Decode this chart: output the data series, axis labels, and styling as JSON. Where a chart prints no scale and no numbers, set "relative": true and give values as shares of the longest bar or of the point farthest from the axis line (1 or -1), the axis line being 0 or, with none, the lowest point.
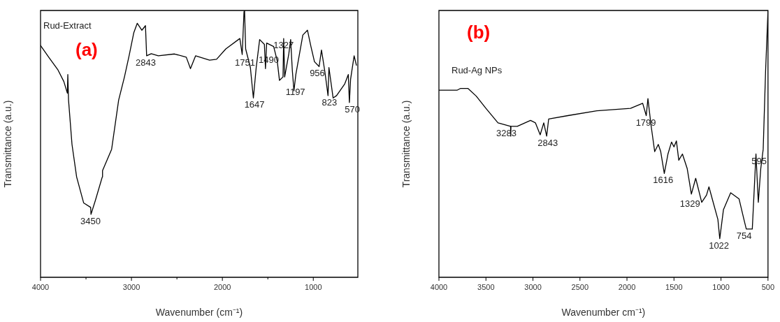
{
  "chart_data": [
    {
      "type": "line",
      "title": "(a)",
      "xlabel": "Wavenumber (cm⁻¹)",
      "ylabel": "Transmittance (a.u.)",
      "relative": true,
      "tick_labels": "x",
      "grid": false,
      "legend": false,
      "marker": "none",
      "line_style": "solid",
      "xlim": [
        4000,
        510
      ],
      "xticks": [
        4000,
        {
          "value": 3500,
          "label": null
        },
        3000,
        {
          "value": 2500,
          "label": null
        },
        2000,
        {
          "value": 1500,
          "label": null
        },
        1000
      ],
      "series": [
        {
          "color": "#000000",
          "x": [
            4000,
            3910,
            3808,
            3744,
            3705,
            3700,
            3692,
            3654,
            3603,
            3526,
            3449,
            3445,
            3397,
            3321,
            3318,
            3218,
            3141,
            3077,
            3026,
            2974,
            2936,
            2885,
            2846,
            2833,
            2782,
            2705,
            2526,
            2397,
            2351,
            2295,
            2141,
            2064,
            1962,
            1808,
            1782,
            1762,
            1756,
            1744,
            1692,
            1667,
            1659,
            1628,
            1590,
            1538,
            1526,
            1513,
            1436,
            1397,
            1372,
            1333,
            1326,
            1315,
            1269,
            1249,
            1231,
            1213,
            1192,
            1115,
            1064,
            1026,
            987,
            936,
            910,
            872,
            838,
            828,
            782,
            744,
            654,
            615,
            603,
            590,
            551,
            526
          ],
          "values": [
            0.869,
            0.825,
            0.777,
            0.734,
            0.69,
            0.76,
            0.664,
            0.498,
            0.376,
            0.279,
            0.262,
            0.236,
            0.288,
            0.376,
            0.4,
            0.48,
            0.664,
            0.751,
            0.83,
            0.917,
            0.952,
            0.926,
            0.943,
            0.83,
            0.838,
            0.83,
            0.837,
            0.825,
            0.782,
            0.83,
            0.814,
            0.817,
            0.856,
            0.895,
            0.835,
            0.996,
            1,
            0.856,
            0.786,
            0.699,
            0.672,
            0.786,
            0.891,
            0.873,
            0.782,
            0.878,
            0.865,
            0.812,
            0.738,
            0.751,
            0.895,
            0.751,
            0.838,
            0.891,
            0.777,
            0.699,
            0.76,
            0.908,
            0.926,
            0.865,
            0.808,
            0.79,
            0.852,
            0.769,
            0.681,
            0.786,
            0.672,
            0.681,
            0.725,
            0.76,
            0.655,
            0.742,
            0.83,
            0.795
          ]
        }
      ],
      "annotations": [
        "Rud-Extract",
        {
          "text": "3450",
          "x": 3450,
          "y": 0.236
        },
        {
          "text": "2843",
          "x": 2843,
          "y": 0.83
        },
        {
          "text": "1751",
          "x": 1751,
          "y": 0.83
        },
        {
          "text": "1647",
          "x": 1647,
          "y": 0.672
        },
        {
          "text": "1490",
          "x": 1490,
          "y": 0.84
        },
        {
          "text": "1327",
          "x": 1327,
          "y": 0.895
        },
        {
          "text": "1197",
          "x": 1197,
          "y": 0.72
        },
        {
          "text": "956",
          "x": 956,
          "y": 0.79
        },
        {
          "text": "823",
          "x": 823,
          "y": 0.681
        },
        {
          "text": "570",
          "x": 570,
          "y": 0.655
        }
      ]
    },
    {
      "type": "line",
      "title": "(b)",
      "xlabel": "Wavenumber cm⁻¹)",
      "ylabel": "Transmittance (a.u.)",
      "relative": true,
      "tick_labels": "x",
      "grid": false,
      "legend": false,
      "marker": "none",
      "line_style": "solid",
      "xlim": [
        4000,
        500
      ],
      "xticks": [
        4000,
        3500,
        3000,
        2500,
        2000,
        1500,
        1000,
        500
      ],
      "series": [
        {
          "color": "#000000",
          "x": [
            4000,
            3808,
            3769,
            3692,
            3603,
            3500,
            3372,
            3238,
            3236,
            3234,
            3167,
            3026,
            2974,
            2923,
            2885,
            2854,
            2833,
            2628,
            2321,
            1962,
            1833,
            1795,
            1777,
            1744,
            1705,
            1667,
            1641,
            1603,
            1564,
            1526,
            1500,
            1474,
            1449,
            1410,
            1359,
            1315,
            1269,
            1205,
            1154,
            1128,
            1090,
            1033,
            1013,
            974,
            897,
            808,
            756,
            731,
            667,
            628,
            603,
            577,
            551,
            526,
            500
          ],
          "values": [
            0.701,
            0.701,
            0.708,
            0.708,
            0.679,
            0.633,
            0.579,
            0.566,
            0.529,
            0.566,
            0.566,
            0.588,
            0.579,
            0.534,
            0.579,
            0.529,
            0.593,
            0.606,
            0.624,
            0.633,
            0.652,
            0.606,
            0.67,
            0.57,
            0.471,
            0.498,
            0.471,
            0.389,
            0.462,
            0.507,
            0.489,
            0.511,
            0.439,
            0.462,
            0.407,
            0.312,
            0.371,
            0.281,
            0.308,
            0.339,
            0.29,
            0.217,
            0.145,
            0.253,
            0.317,
            0.294,
            0.217,
            0.181,
            0.181,
            0.462,
            0.281,
            0.407,
            0.48,
            0.769,
            1
          ]
        }
      ],
      "annotations": [
        "Rud-Ag NPs",
        {
          "text": "3283",
          "x": 3283,
          "y": 0.566
        },
        {
          "text": "2843",
          "x": 2843,
          "y": 0.529
        },
        {
          "text": "1799",
          "x": 1799,
          "y": 0.606
        },
        {
          "text": "1616",
          "x": 1616,
          "y": 0.389
        },
        {
          "text": "1329",
          "x": 1329,
          "y": 0.3
        },
        {
          "text": "1022",
          "x": 1022,
          "y": 0.145
        },
        {
          "text": "754",
          "x": 754,
          "y": 0.181
        },
        {
          "text": "595",
          "x": 595,
          "y": 0.462
        }
      ]
    }
  ]
}
